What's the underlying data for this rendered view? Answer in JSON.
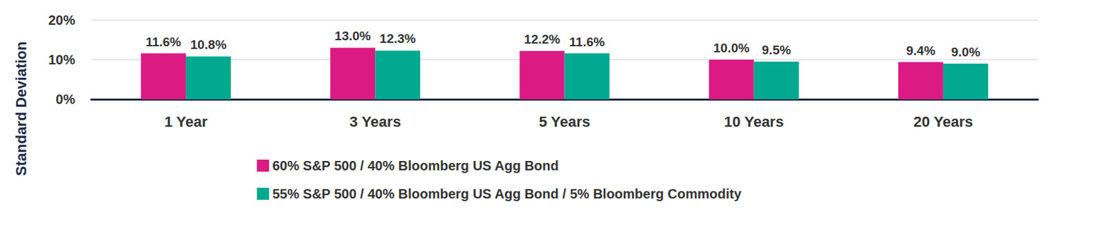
{
  "chart_data": {
    "type": "bar",
    "y_label": "Standard Deviation",
    "categories": [
      "1 Year",
      "3 Years",
      "5 Years",
      "10 Years",
      "20 Years"
    ],
    "series": [
      {
        "name": "60% S&P 500 / 40% Bloomberg US Agg Bond",
        "color": "#DB1A84",
        "values": [
          11.6,
          13.0,
          12.2,
          10.0,
          9.4
        ],
        "value_labels": [
          "11.6%",
          "13.0%",
          "12.2%",
          "10.0%",
          "9.4%"
        ]
      },
      {
        "name": "55% S&P 500 / 40% Bloomberg US Agg Bond / 5% Bloomberg Commodity",
        "color": "#00A98F",
        "values": [
          10.8,
          12.3,
          11.6,
          9.5,
          9.0
        ],
        "value_labels": [
          "10.8%",
          "12.3%",
          "11.6%",
          "9.5%",
          "9.0%"
        ]
      }
    ],
    "ylim": [
      0,
      20
    ],
    "yticks": [
      {
        "value": 0,
        "label": "0%"
      },
      {
        "value": 10,
        "label": "10%"
      },
      {
        "value": 20,
        "label": "20%"
      }
    ],
    "grid": true,
    "data_labels": true,
    "legend": "bottom"
  }
}
